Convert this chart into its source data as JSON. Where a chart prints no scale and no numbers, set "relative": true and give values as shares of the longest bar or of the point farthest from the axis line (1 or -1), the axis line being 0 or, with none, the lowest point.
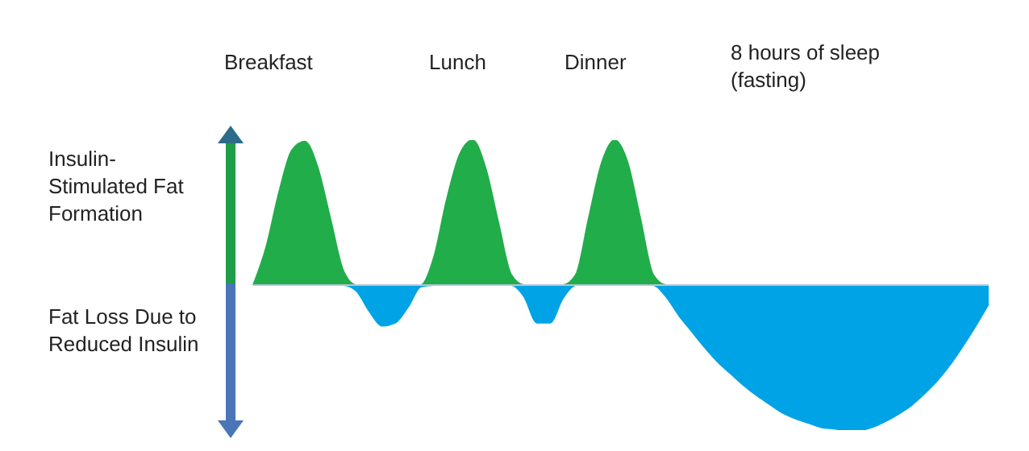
{
  "chart_data": {
    "type": "area",
    "relative": true,
    "categories": [
      null,
      null,
      null,
      null,
      null,
      null,
      null,
      null,
      null,
      null,
      null,
      null,
      null,
      null,
      null,
      null,
      null,
      null,
      null,
      null,
      null,
      null,
      null,
      null,
      null,
      null,
      null,
      null,
      null,
      null,
      null,
      null,
      null,
      null,
      null,
      null,
      null,
      null,
      null,
      null,
      null,
      null,
      null,
      null,
      null,
      null,
      null,
      null,
      null,
      null,
      null,
      null,
      null,
      null,
      null,
      null,
      null,
      null
    ],
    "series": [
      {
        "color": "#22ad4b",
        "values": [
          0,
          0.26,
          0.64,
          0.93,
          0.99,
          0.81,
          0.45,
          0.095,
          0,
          0,
          0,
          0,
          0,
          0,
          0.19,
          0.59,
          0.9,
          1,
          0.81,
          0.43,
          0.07,
          0,
          0,
          0,
          0,
          0.07,
          0.46,
          0.84,
          1,
          0.85,
          0.46,
          0.07,
          0,
          0,
          0,
          0,
          0,
          0,
          0,
          0,
          0,
          0,
          0,
          0,
          0,
          0,
          0,
          0,
          0,
          0,
          0,
          0,
          0,
          0,
          0,
          0,
          0,
          0
        ]
      },
      {
        "color": "#00a3e6",
        "values": [
          0,
          0,
          0,
          0,
          0,
          0,
          0,
          0,
          -0.04,
          -0.18,
          -0.28,
          -0.26,
          -0.15,
          -0.01,
          0,
          0,
          0,
          0,
          0,
          0,
          0,
          -0.08,
          -0.26,
          -0.26,
          -0.09,
          0,
          0,
          0,
          0,
          0,
          0,
          0,
          -0.08,
          -0.21,
          -0.32,
          -0.43,
          -0.53,
          -0.61,
          -0.69,
          -0.76,
          -0.82,
          -0.88,
          -0.92,
          -0.95,
          -0.98,
          -0.99,
          -1,
          -1,
          -0.98,
          -0.94,
          -0.89,
          -0.83,
          -0.75,
          -0.66,
          -0.55,
          -0.42,
          -0.28,
          -0.13
        ]
      }
    ],
    "annotations": [
      "Breakfast",
      "Lunch",
      "Dinner",
      "8 hours of sleep (fasting)",
      "Insulin-Stimulated Fat Formation",
      "Fat Loss Due to Reduced Insulin"
    ]
  }
}
